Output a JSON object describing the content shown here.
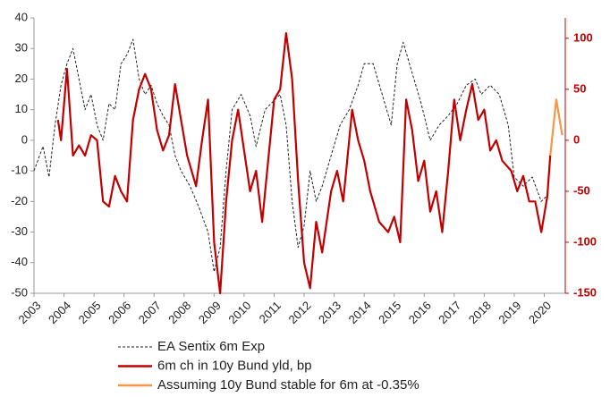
{
  "chart_data": {
    "type": "line",
    "xlim": [
      2003,
      2020.7
    ],
    "xticks": [
      2003,
      2004,
      2005,
      2006,
      2007,
      2008,
      2009,
      2010,
      2011,
      2012,
      2013,
      2014,
      2015,
      2016,
      2017,
      2018,
      2019,
      2020
    ],
    "ylim": [
      -50,
      40
    ],
    "yticks": [
      -50,
      -40,
      -30,
      -20,
      -10,
      0,
      10,
      20,
      30,
      40
    ],
    "y2lim": [
      -150,
      120
    ],
    "y2ticks": [
      -150,
      -100,
      -50,
      0,
      50,
      100
    ],
    "y2_color": "#c00000",
    "series": [
      {
        "name": "EA Sentix 6m Exp",
        "color": "#222222",
        "dashed": true,
        "axis": "y",
        "x": [
          2003.0,
          2003.3,
          2003.5,
          2003.7,
          2003.9,
          2004.1,
          2004.3,
          2004.5,
          2004.7,
          2004.9,
          2005.1,
          2005.3,
          2005.5,
          2005.7,
          2005.9,
          2006.1,
          2006.3,
          2006.5,
          2006.7,
          2006.9,
          2007.1,
          2007.3,
          2007.5,
          2007.7,
          2007.9,
          2008.2,
          2008.5,
          2008.8,
          2009.0,
          2009.2,
          2009.4,
          2009.6,
          2009.9,
          2010.2,
          2010.4,
          2010.7,
          2010.9,
          2011.2,
          2011.4,
          2011.6,
          2011.8,
          2012.0,
          2012.2,
          2012.4,
          2012.6,
          2012.9,
          2013.2,
          2013.5,
          2013.8,
          2014.0,
          2014.3,
          2014.6,
          2014.9,
          2015.1,
          2015.3,
          2015.6,
          2015.9,
          2016.2,
          2016.5,
          2016.8,
          2017.1,
          2017.4,
          2017.7,
          2017.9,
          2018.2,
          2018.5,
          2018.8,
          2019.0,
          2019.3,
          2019.6,
          2019.9,
          2020.1
        ],
        "values": [
          -10,
          -2,
          -12,
          5,
          18,
          25,
          30,
          20,
          10,
          15,
          5,
          0,
          12,
          10,
          25,
          28,
          33,
          20,
          15,
          18,
          12,
          8,
          5,
          -5,
          -10,
          -15,
          -22,
          -30,
          -43,
          -35,
          -10,
          10,
          15,
          8,
          -2,
          10,
          12,
          15,
          5,
          -20,
          -35,
          -28,
          -10,
          -20,
          -15,
          -5,
          5,
          10,
          18,
          25,
          25,
          15,
          5,
          25,
          32,
          22,
          12,
          0,
          5,
          8,
          12,
          18,
          20,
          15,
          18,
          15,
          5,
          -12,
          -15,
          -12,
          -20,
          -18
        ]
      },
      {
        "name": "6m ch in 10y Bund yld, bp",
        "color": "#c00000",
        "dashed": false,
        "axis": "y2",
        "x": [
          2003.8,
          2003.9,
          2004.1,
          2004.3,
          2004.5,
          2004.7,
          2004.9,
          2005.1,
          2005.3,
          2005.5,
          2005.7,
          2005.9,
          2006.1,
          2006.3,
          2006.5,
          2006.7,
          2006.9,
          2007.1,
          2007.3,
          2007.5,
          2007.7,
          2007.9,
          2008.1,
          2008.4,
          2008.6,
          2008.8,
          2009.0,
          2009.2,
          2009.4,
          2009.6,
          2009.8,
          2010.0,
          2010.2,
          2010.4,
          2010.6,
          2010.8,
          2011.0,
          2011.2,
          2011.4,
          2011.6,
          2011.8,
          2012.0,
          2012.2,
          2012.4,
          2012.6,
          2012.9,
          2013.1,
          2013.3,
          2013.6,
          2013.8,
          2014.0,
          2014.2,
          2014.5,
          2014.8,
          2015.0,
          2015.2,
          2015.4,
          2015.6,
          2015.8,
          2016.0,
          2016.2,
          2016.4,
          2016.6,
          2016.8,
          2017.0,
          2017.2,
          2017.4,
          2017.6,
          2017.8,
          2018.0,
          2018.2,
          2018.4,
          2018.6,
          2018.9,
          2019.1,
          2019.3,
          2019.5,
          2019.7,
          2019.9,
          2020.1,
          2020.2
        ],
        "values": [
          20,
          0,
          70,
          -15,
          -5,
          -15,
          5,
          0,
          -60,
          -65,
          -35,
          -50,
          -60,
          20,
          50,
          65,
          50,
          10,
          -10,
          5,
          55,
          20,
          -15,
          -45,
          0,
          40,
          -100,
          -150,
          -60,
          0,
          30,
          -10,
          -50,
          -30,
          -80,
          -20,
          40,
          50,
          105,
          60,
          -40,
          -120,
          -145,
          -80,
          -110,
          -50,
          -30,
          -60,
          30,
          0,
          -20,
          -50,
          -80,
          -90,
          -75,
          -100,
          40,
          10,
          -40,
          -20,
          -70,
          -50,
          -90,
          -30,
          40,
          0,
          30,
          55,
          20,
          30,
          -10,
          0,
          -20,
          -30,
          -50,
          -35,
          -60,
          -60,
          -90,
          -55,
          -15
        ]
      },
      {
        "name": "Assuming 10y Bund stable for 6m at -0.35%",
        "color": "#f79646",
        "dashed": false,
        "axis": "y2",
        "x": [
          2020.2,
          2020.4,
          2020.6
        ],
        "values": [
          -15,
          40,
          5
        ]
      }
    ]
  }
}
